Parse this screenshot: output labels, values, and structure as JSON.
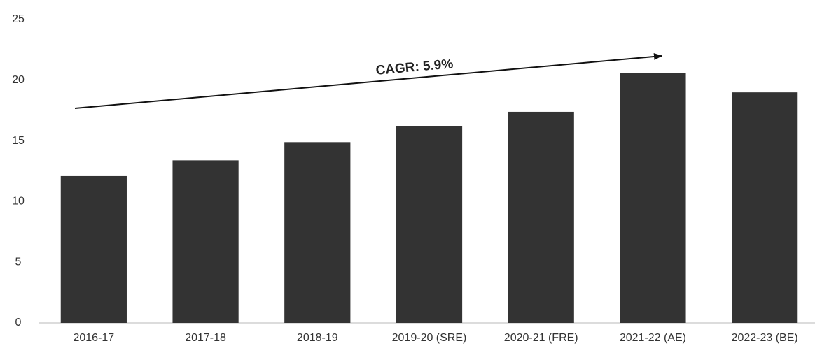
{
  "chart_data": {
    "type": "bar",
    "categories": [
      "2016-17",
      "2017-18",
      "2018-19",
      "2019-20 (SRE)",
      "2020-21 (FRE)",
      "2021-22 (AE)",
      "2022-23 (BE)"
    ],
    "values": [
      12.1,
      13.4,
      14.9,
      16.2,
      17.4,
      20.6,
      19.0
    ],
    "color": "#333333",
    "ylim": [
      0,
      25
    ],
    "yticks": [
      0,
      5,
      10,
      15,
      20,
      25
    ],
    "grid": false,
    "annotations": [
      "CAGR: 5.9%"
    ]
  }
}
